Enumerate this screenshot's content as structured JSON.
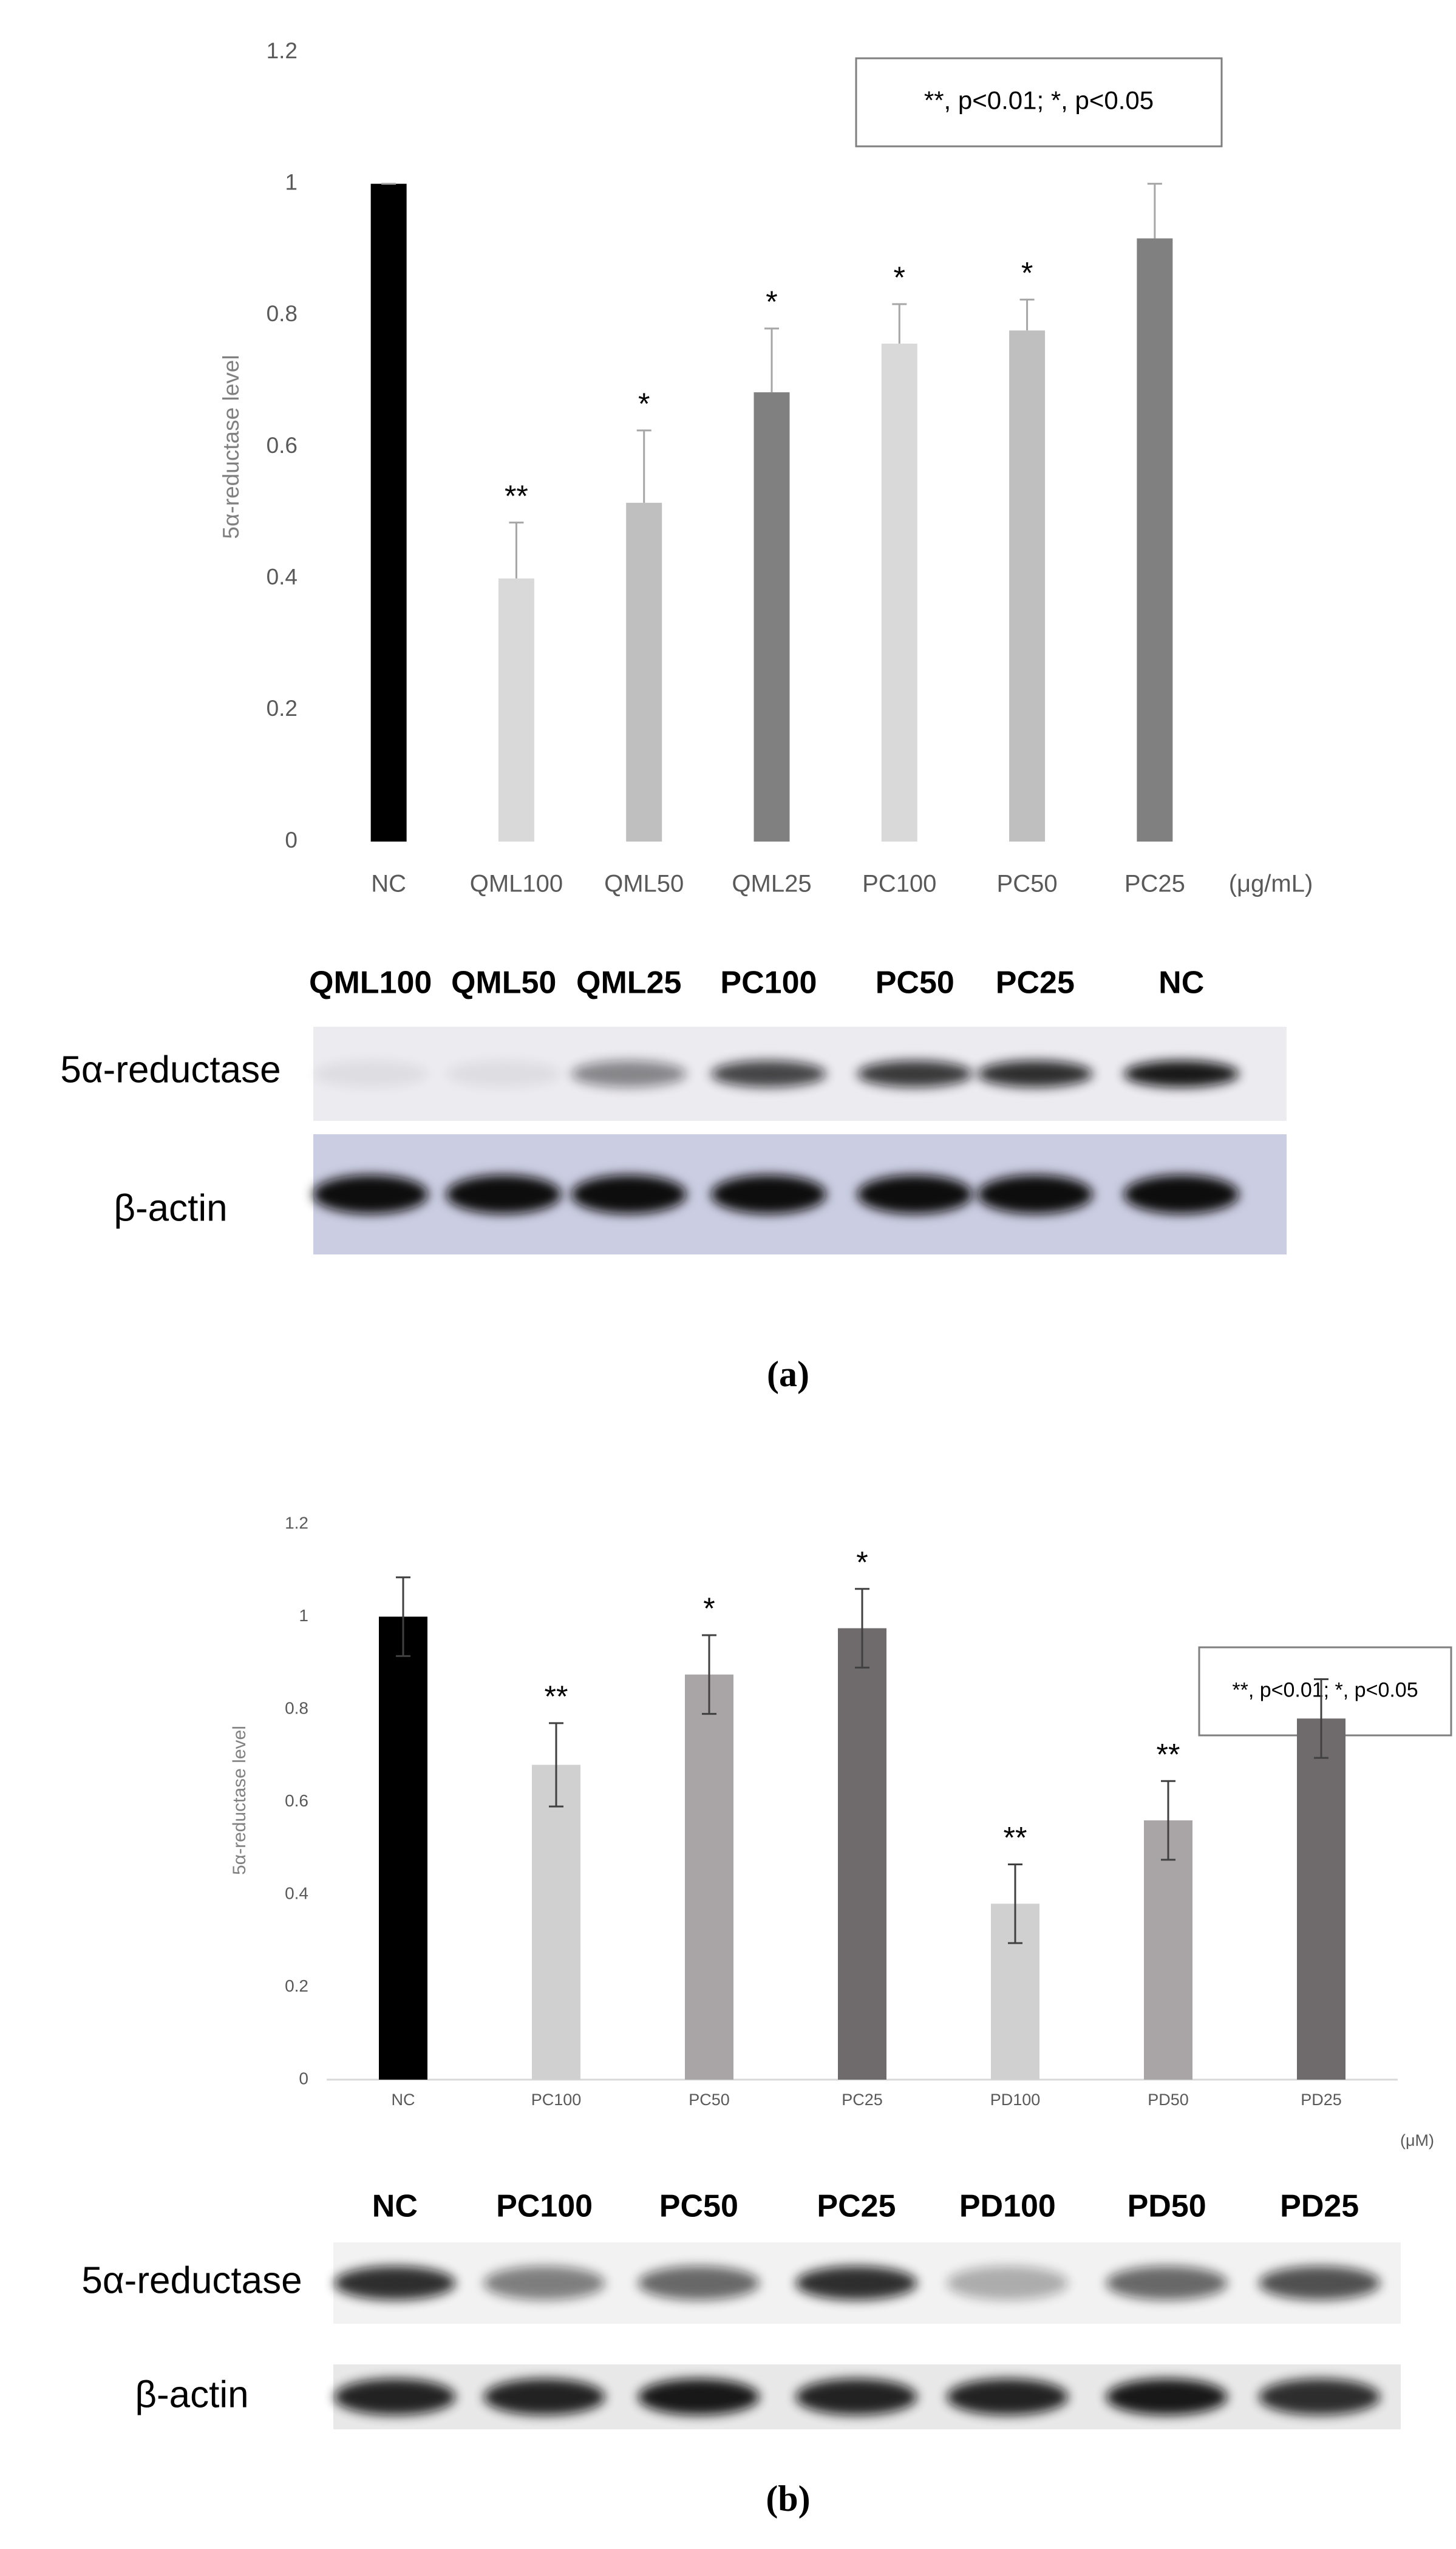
{
  "chart_data": [
    {
      "type": "bar",
      "ylabel": "5α-reductase level",
      "unit": "(μg/mL)",
      "categories": [
        "NC",
        "QML100",
        "QML50",
        "QML25",
        "PC100",
        "PC50",
        "PC25"
      ],
      "values": [
        1.0,
        0.4,
        0.515,
        0.683,
        0.757,
        0.777,
        0.917
      ],
      "errors": [
        0.0,
        0.085,
        0.11,
        0.097,
        0.06,
        0.047,
        0.083
      ],
      "colors": [
        "#000000",
        "#d9d9d9",
        "#bfbfbf",
        "#808080",
        "#d9d9d9",
        "#bfbfbf",
        "#808080"
      ],
      "significance": [
        null,
        "**",
        "*",
        "*",
        "*",
        "*",
        null
      ],
      "annotation": "**, p<0.01; *, p<0.05",
      "error_bars": "upper",
      "ylim": [
        0,
        1.2
      ],
      "yticks": [
        0,
        0.2,
        0.4,
        0.6,
        0.8,
        1,
        1.2
      ],
      "grid": false
    },
    {
      "type": "bar",
      "ylabel": "5α-reductase level",
      "unit": "(μM)",
      "categories": [
        "NC",
        "PC100",
        "PC50",
        "PC25",
        "PD100",
        "PD50",
        "PD25"
      ],
      "values": [
        1.0,
        0.68,
        0.875,
        0.975,
        0.38,
        0.56,
        0.78
      ],
      "errors": [
        0.085,
        0.09,
        0.085,
        0.085,
        0.085,
        0.085,
        0.085
      ],
      "colors": [
        "#000000",
        "#d0d0d0",
        "#a9a5a6",
        "#6f6b6c",
        "#d0d0d0",
        "#a9a5a6",
        "#6f6b6c"
      ],
      "significance": [
        null,
        "**",
        "*",
        "*",
        "**",
        "**",
        null
      ],
      "annotation": "**, p<0.01; *, p<0.05",
      "error_bars": "both",
      "ylim": [
        0,
        1.2
      ],
      "yticks": [
        0,
        0.2,
        0.4,
        0.6,
        0.8,
        1,
        1.2
      ],
      "grid": false
    }
  ],
  "blots": [
    {
      "lanes": [
        "QML100",
        "QML50",
        "QML25",
        "PC100",
        "PC50",
        "PC25",
        "NC"
      ],
      "rows": [
        "5α-reductase",
        "β-actin"
      ]
    },
    {
      "lanes": [
        "NC",
        "PC100",
        "PC50",
        "PC25",
        "PD100",
        "PD50",
        "PD25"
      ],
      "rows": [
        "5α-reductase",
        "β-actin"
      ]
    }
  ],
  "panel_labels": [
    "(a)",
    "(b)"
  ]
}
